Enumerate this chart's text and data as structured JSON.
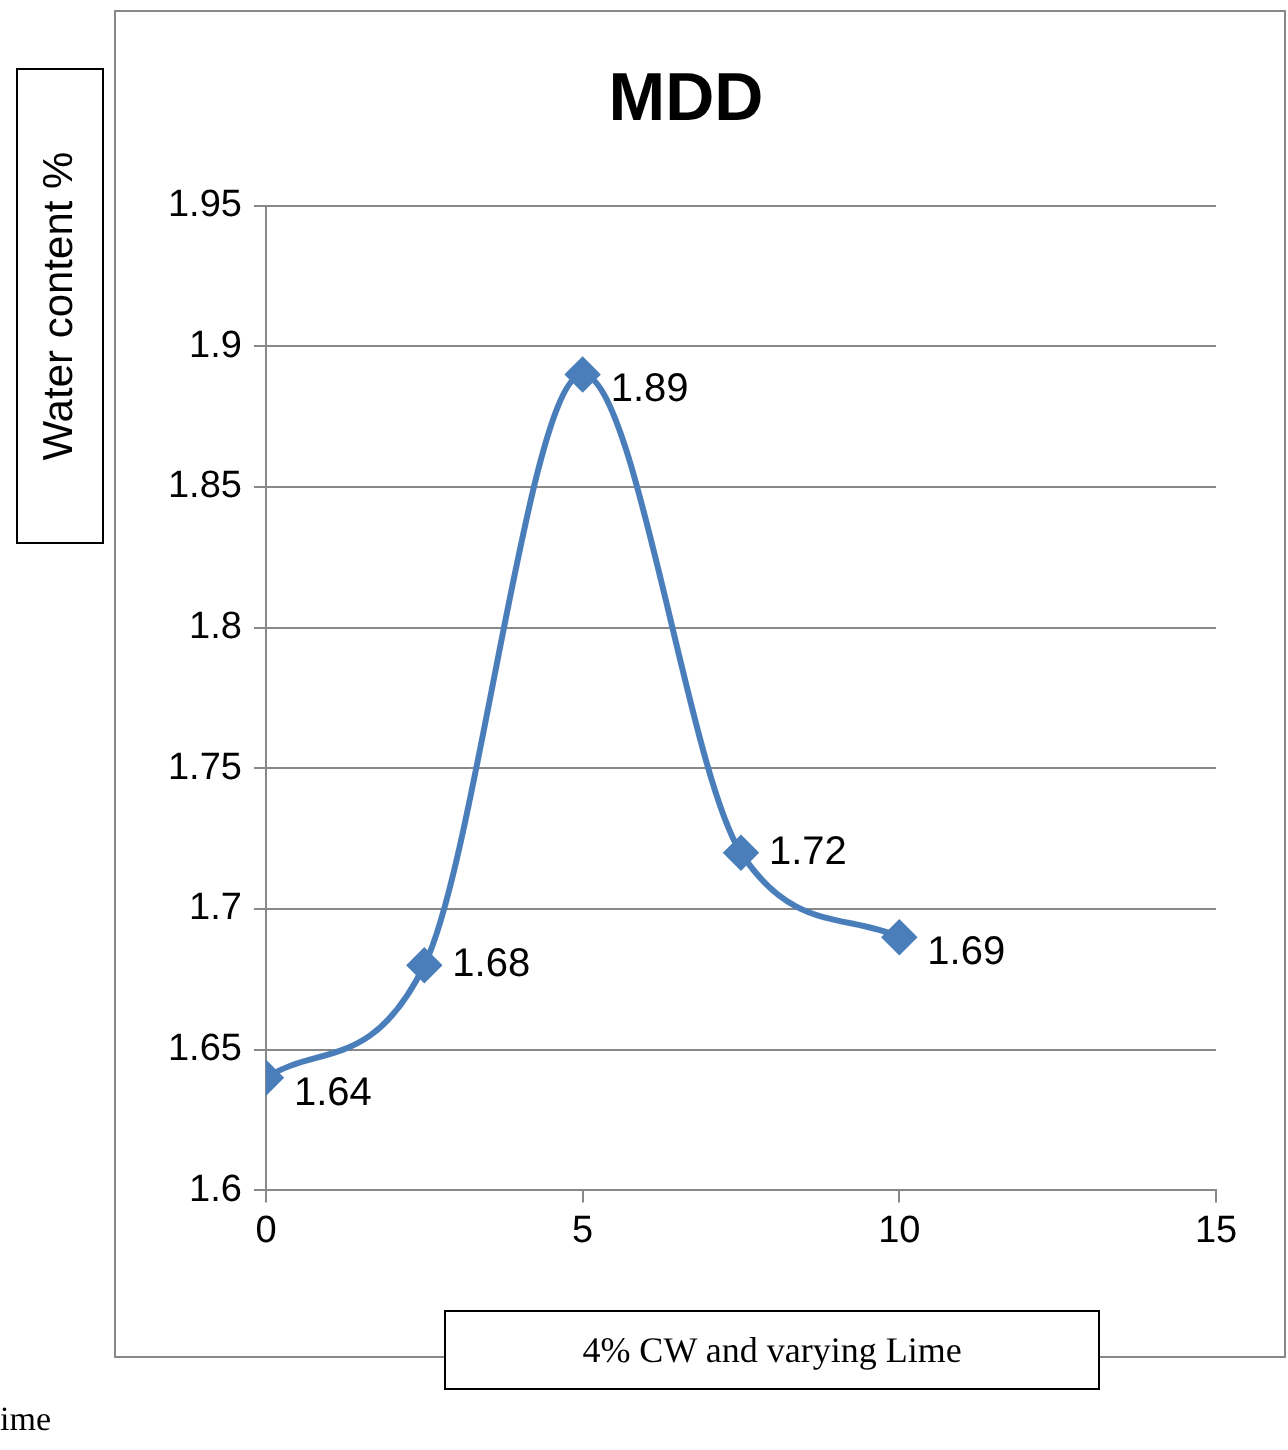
{
  "chart_data": {
    "type": "line",
    "title": "MDD",
    "xlabel": "4% CW and varying Lime",
    "ylabel": "Water content %",
    "x": [
      0,
      2.5,
      5,
      7.5,
      10
    ],
    "series": [
      {
        "color": "#4a7ebb",
        "values": [
          1.64,
          1.68,
          1.89,
          1.72,
          1.69
        ]
      }
    ],
    "xlim": [
      0,
      15
    ],
    "xticks": [
      0,
      5,
      10,
      15
    ],
    "ylim": [
      1.6,
      1.95
    ],
    "yticks": [
      1.6,
      1.65,
      1.7,
      1.75,
      1.8,
      1.85,
      1.9,
      1.95
    ],
    "grid": "y",
    "legend": false,
    "marker": "diamond",
    "line_style": "solid",
    "data_labels": true,
    "annotations": [
      "ime"
    ]
  }
}
